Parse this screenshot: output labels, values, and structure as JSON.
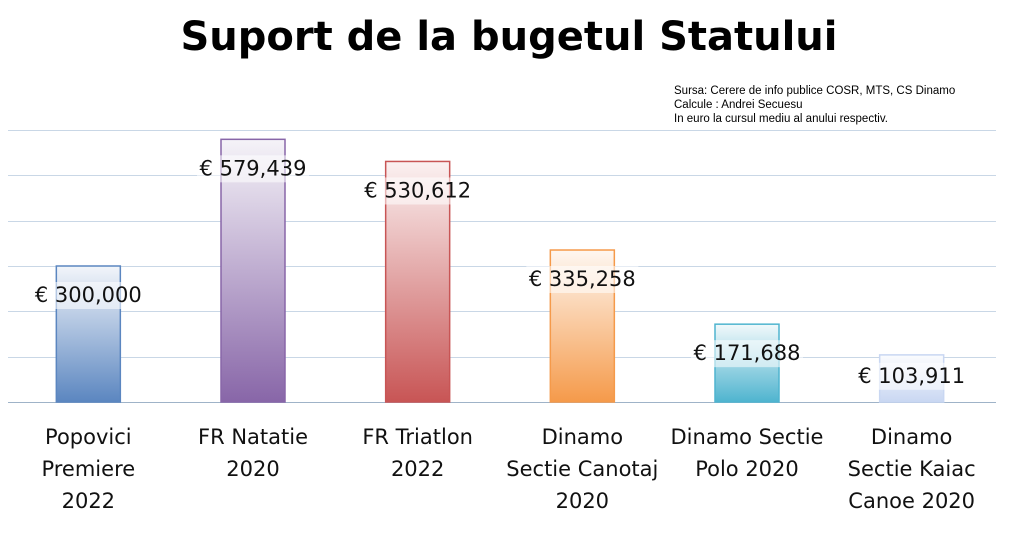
{
  "chart_data": {
    "type": "bar",
    "title": "Suport de la bugetul Statului",
    "notes": [
      "Sursa: Cerere de info publice  COSR, MTS, CS Dinamo",
      "Calcule : Andrei Secuesu",
      "In euro la cursul mediu al anului respectiv."
    ],
    "categories": [
      [
        "Popovici",
        "Premiere",
        "2022"
      ],
      [
        "FR Natatie",
        "2020"
      ],
      [
        "FR Triatlon",
        "2022"
      ],
      [
        "Dinamo",
        "Sectie Canotaj",
        "2020"
      ],
      [
        "Dinamo Sectie",
        "Polo 2020"
      ],
      [
        "Dinamo",
        "Sectie Kaiac",
        "Canoe 2020"
      ]
    ],
    "values": [
      300000,
      579439,
      530612,
      335258,
      171688,
      103911
    ],
    "value_labels": [
      "€ 300,000",
      "€ 579,439",
      "€ 530,612",
      "€ 335,258",
      "€ 171,688",
      "€ 103,911"
    ],
    "colors": [
      "#5b86c0",
      "#8866a8",
      "#c85555",
      "#f59a4a",
      "#4fb4cf",
      "#c9d7f2"
    ],
    "ylim": [
      0,
      600000
    ],
    "grid": true,
    "xlabel": "",
    "ylabel": ""
  }
}
